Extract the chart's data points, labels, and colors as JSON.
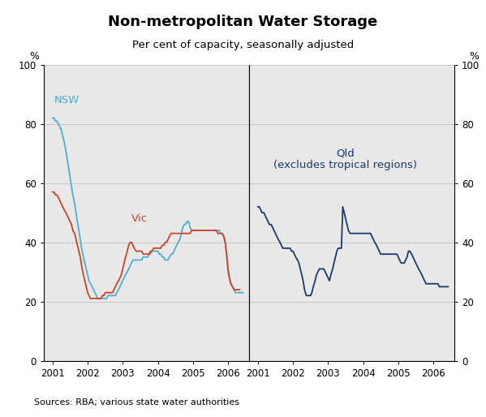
{
  "title": "Non-metropolitan Water Storage",
  "subtitle": "Per cent of capacity, seasonally adjusted",
  "ylabel_left": "%",
  "ylabel_right": "%",
  "source": "Sources: RBA; various state water authorities",
  "ylim": [
    0,
    100
  ],
  "yticks": [
    0,
    20,
    40,
    60,
    80,
    100
  ],
  "background_color": "#ffffff",
  "plot_bg_color": "#e8e8e8",
  "nsw_color": "#4bafd4",
  "vic_color": "#cc4422",
  "qld_color": "#1a3a6e",
  "nsw_label": "NSW",
  "vic_label": "Vic",
  "qld_label": "Qld\n(excludes tropical regions)",
  "left_xticks": [
    2001,
    2002,
    2003,
    2004,
    2005,
    2006
  ],
  "right_xticks": [
    2001,
    2002,
    2003,
    2004,
    2005,
    2006
  ],
  "nsw_x": [
    2001.0,
    2001.04,
    2001.08,
    2001.12,
    2001.17,
    2001.21,
    2001.25,
    2001.29,
    2001.33,
    2001.38,
    2001.42,
    2001.46,
    2001.5,
    2001.54,
    2001.58,
    2001.63,
    2001.67,
    2001.71,
    2001.75,
    2001.79,
    2001.83,
    2001.88,
    2001.92,
    2001.96,
    2002.0,
    2002.04,
    2002.08,
    2002.13,
    2002.17,
    2002.21,
    2002.25,
    2002.29,
    2002.33,
    2002.38,
    2002.42,
    2002.46,
    2002.5,
    2002.54,
    2002.58,
    2002.63,
    2002.67,
    2002.71,
    2002.75,
    2002.79,
    2002.83,
    2002.88,
    2002.92,
    2002.96,
    2003.0,
    2003.04,
    2003.08,
    2003.13,
    2003.17,
    2003.21,
    2003.25,
    2003.29,
    2003.33,
    2003.38,
    2003.42,
    2003.46,
    2003.5,
    2003.54,
    2003.58,
    2003.63,
    2003.67,
    2003.71,
    2003.75,
    2003.79,
    2003.83,
    2003.88,
    2003.92,
    2003.96,
    2004.0,
    2004.04,
    2004.08,
    2004.13,
    2004.17,
    2004.21,
    2004.25,
    2004.29,
    2004.33,
    2004.38,
    2004.42,
    2004.46,
    2004.5,
    2004.54,
    2004.58,
    2004.63,
    2004.67,
    2004.71,
    2004.75,
    2004.79,
    2004.83,
    2004.88,
    2004.92,
    2004.96,
    2005.0,
    2005.04,
    2005.08,
    2005.13,
    2005.17,
    2005.21,
    2005.25,
    2005.29,
    2005.33,
    2005.38,
    2005.42,
    2005.46,
    2005.5,
    2005.54,
    2005.58,
    2005.63,
    2005.67,
    2005.71,
    2005.75,
    2005.79,
    2005.83,
    2005.88,
    2005.92,
    2005.96,
    2006.0,
    2006.04,
    2006.08,
    2006.13,
    2006.17,
    2006.21,
    2006.25,
    2006.29,
    2006.33,
    2006.38,
    2006.42
  ],
  "nsw_y": [
    82,
    82,
    81,
    81,
    80,
    79,
    78,
    76,
    74,
    71,
    68,
    65,
    62,
    59,
    56,
    53,
    50,
    47,
    44,
    41,
    38,
    35,
    33,
    31,
    29,
    27,
    26,
    25,
    24,
    23,
    22,
    21,
    21,
    21,
    21,
    21,
    21,
    21,
    22,
    22,
    22,
    22,
    22,
    22,
    23,
    24,
    25,
    26,
    27,
    28,
    29,
    30,
    31,
    32,
    33,
    34,
    34,
    34,
    34,
    34,
    34,
    34,
    35,
    35,
    35,
    35,
    36,
    36,
    37,
    37,
    37,
    37,
    37,
    36,
    36,
    35,
    35,
    34,
    34,
    34,
    35,
    36,
    36,
    37,
    38,
    39,
    40,
    41,
    43,
    45,
    46,
    46,
    47,
    47,
    45,
    44,
    44,
    44,
    44,
    44,
    44,
    44,
    44,
    44,
    44,
    44,
    44,
    44,
    44,
    44,
    44,
    44,
    44,
    44,
    44,
    43,
    43,
    42,
    40,
    36,
    30,
    28,
    26,
    25,
    24,
    23,
    23,
    23,
    23,
    23,
    23
  ],
  "vic_x": [
    2001.0,
    2001.04,
    2001.08,
    2001.12,
    2001.17,
    2001.21,
    2001.25,
    2001.29,
    2001.33,
    2001.38,
    2001.42,
    2001.46,
    2001.5,
    2001.54,
    2001.58,
    2001.63,
    2001.67,
    2001.71,
    2001.75,
    2001.79,
    2001.83,
    2001.88,
    2001.92,
    2001.96,
    2002.0,
    2002.04,
    2002.08,
    2002.13,
    2002.17,
    2002.21,
    2002.25,
    2002.29,
    2002.33,
    2002.38,
    2002.42,
    2002.46,
    2002.5,
    2002.54,
    2002.58,
    2002.63,
    2002.67,
    2002.71,
    2002.75,
    2002.79,
    2002.83,
    2002.88,
    2002.92,
    2002.96,
    2003.0,
    2003.04,
    2003.08,
    2003.13,
    2003.17,
    2003.21,
    2003.25,
    2003.29,
    2003.33,
    2003.38,
    2003.42,
    2003.46,
    2003.5,
    2003.54,
    2003.58,
    2003.63,
    2003.67,
    2003.71,
    2003.75,
    2003.79,
    2003.83,
    2003.88,
    2003.92,
    2003.96,
    2004.0,
    2004.04,
    2004.08,
    2004.13,
    2004.17,
    2004.21,
    2004.25,
    2004.29,
    2004.33,
    2004.38,
    2004.42,
    2004.46,
    2004.5,
    2004.54,
    2004.58,
    2004.63,
    2004.67,
    2004.71,
    2004.75,
    2004.79,
    2004.83,
    2004.88,
    2004.92,
    2004.96,
    2005.0,
    2005.04,
    2005.08,
    2005.13,
    2005.17,
    2005.21,
    2005.25,
    2005.29,
    2005.33,
    2005.38,
    2005.42,
    2005.46,
    2005.5,
    2005.54,
    2005.58,
    2005.63,
    2005.67,
    2005.71,
    2005.75,
    2005.79,
    2005.83,
    2005.88,
    2005.92,
    2005.96,
    2006.0,
    2006.04,
    2006.08,
    2006.13,
    2006.17,
    2006.21,
    2006.25,
    2006.29,
    2006.33
  ],
  "vic_y": [
    57,
    57,
    56,
    56,
    55,
    54,
    53,
    52,
    51,
    50,
    49,
    48,
    47,
    46,
    44,
    43,
    41,
    39,
    37,
    35,
    32,
    29,
    27,
    25,
    23,
    22,
    21,
    21,
    21,
    21,
    21,
    21,
    21,
    21,
    22,
    22,
    23,
    23,
    23,
    23,
    23,
    23,
    24,
    25,
    26,
    27,
    28,
    29,
    31,
    33,
    35,
    37,
    39,
    40,
    40,
    39,
    38,
    37,
    37,
    37,
    37,
    37,
    36,
    36,
    36,
    36,
    36,
    37,
    37,
    38,
    38,
    38,
    38,
    38,
    38,
    39,
    39,
    40,
    40,
    41,
    42,
    43,
    43,
    43,
    43,
    43,
    43,
    43,
    43,
    43,
    43,
    43,
    43,
    43,
    43,
    44,
    44,
    44,
    44,
    44,
    44,
    44,
    44,
    44,
    44,
    44,
    44,
    44,
    44,
    44,
    44,
    44,
    44,
    43,
    43,
    43,
    43,
    42,
    40,
    36,
    31,
    28,
    26,
    25,
    24,
    24,
    24,
    24,
    24
  ],
  "qld_x": [
    2001.0,
    2001.04,
    2001.08,
    2001.12,
    2001.17,
    2001.21,
    2001.25,
    2001.29,
    2001.33,
    2001.38,
    2001.42,
    2001.46,
    2001.5,
    2001.54,
    2001.58,
    2001.63,
    2001.67,
    2001.71,
    2001.75,
    2001.79,
    2001.83,
    2001.88,
    2001.92,
    2001.96,
    2002.0,
    2002.04,
    2002.08,
    2002.13,
    2002.17,
    2002.21,
    2002.25,
    2002.29,
    2002.33,
    2002.38,
    2002.42,
    2002.46,
    2002.5,
    2002.54,
    2002.58,
    2002.63,
    2002.67,
    2002.71,
    2002.75,
    2002.79,
    2002.83,
    2002.88,
    2002.92,
    2002.96,
    2003.0,
    2003.04,
    2003.08,
    2003.13,
    2003.17,
    2003.21,
    2003.25,
    2003.29,
    2003.33,
    2003.38,
    2003.42,
    2003.46,
    2003.5,
    2003.54,
    2003.58,
    2003.63,
    2003.67,
    2003.71,
    2003.75,
    2003.79,
    2003.83,
    2003.88,
    2003.92,
    2003.96,
    2004.0,
    2004.04,
    2004.08,
    2004.13,
    2004.17,
    2004.21,
    2004.25,
    2004.29,
    2004.33,
    2004.38,
    2004.42,
    2004.46,
    2004.5,
    2004.54,
    2004.58,
    2004.63,
    2004.67,
    2004.71,
    2004.75,
    2004.79,
    2004.83,
    2004.88,
    2004.92,
    2004.96,
    2005.0,
    2005.04,
    2005.08,
    2005.13,
    2005.17,
    2005.21,
    2005.25,
    2005.29,
    2005.33,
    2005.38,
    2005.42,
    2005.46,
    2005.5,
    2005.54,
    2005.58,
    2005.63,
    2005.67,
    2005.71,
    2005.75,
    2005.79,
    2005.83,
    2005.88,
    2005.92,
    2005.96,
    2006.0,
    2006.04,
    2006.08,
    2006.13,
    2006.17,
    2006.21,
    2006.25,
    2006.29,
    2006.33,
    2006.38,
    2006.42
  ],
  "qld_y": [
    52,
    52,
    51,
    50,
    50,
    49,
    48,
    47,
    46,
    46,
    45,
    44,
    43,
    42,
    41,
    40,
    39,
    38,
    38,
    38,
    38,
    38,
    38,
    37,
    37,
    36,
    35,
    34,
    33,
    31,
    29,
    27,
    24,
    22,
    22,
    22,
    22,
    23,
    25,
    27,
    29,
    30,
    31,
    31,
    31,
    31,
    30,
    29,
    28,
    27,
    29,
    31,
    33,
    35,
    37,
    38,
    38,
    38,
    52,
    50,
    48,
    46,
    44,
    43,
    43,
    43,
    43,
    43,
    43,
    43,
    43,
    43,
    43,
    43,
    43,
    43,
    43,
    43,
    42,
    41,
    40,
    39,
    38,
    37,
    36,
    36,
    36,
    36,
    36,
    36,
    36,
    36,
    36,
    36,
    36,
    36,
    35,
    34,
    33,
    33,
    33,
    34,
    35,
    37,
    37,
    36,
    35,
    34,
    33,
    32,
    31,
    30,
    29,
    28,
    27,
    26,
    26,
    26,
    26,
    26,
    26,
    26,
    26,
    26,
    25,
    25,
    25,
    25,
    25,
    25,
    25
  ]
}
